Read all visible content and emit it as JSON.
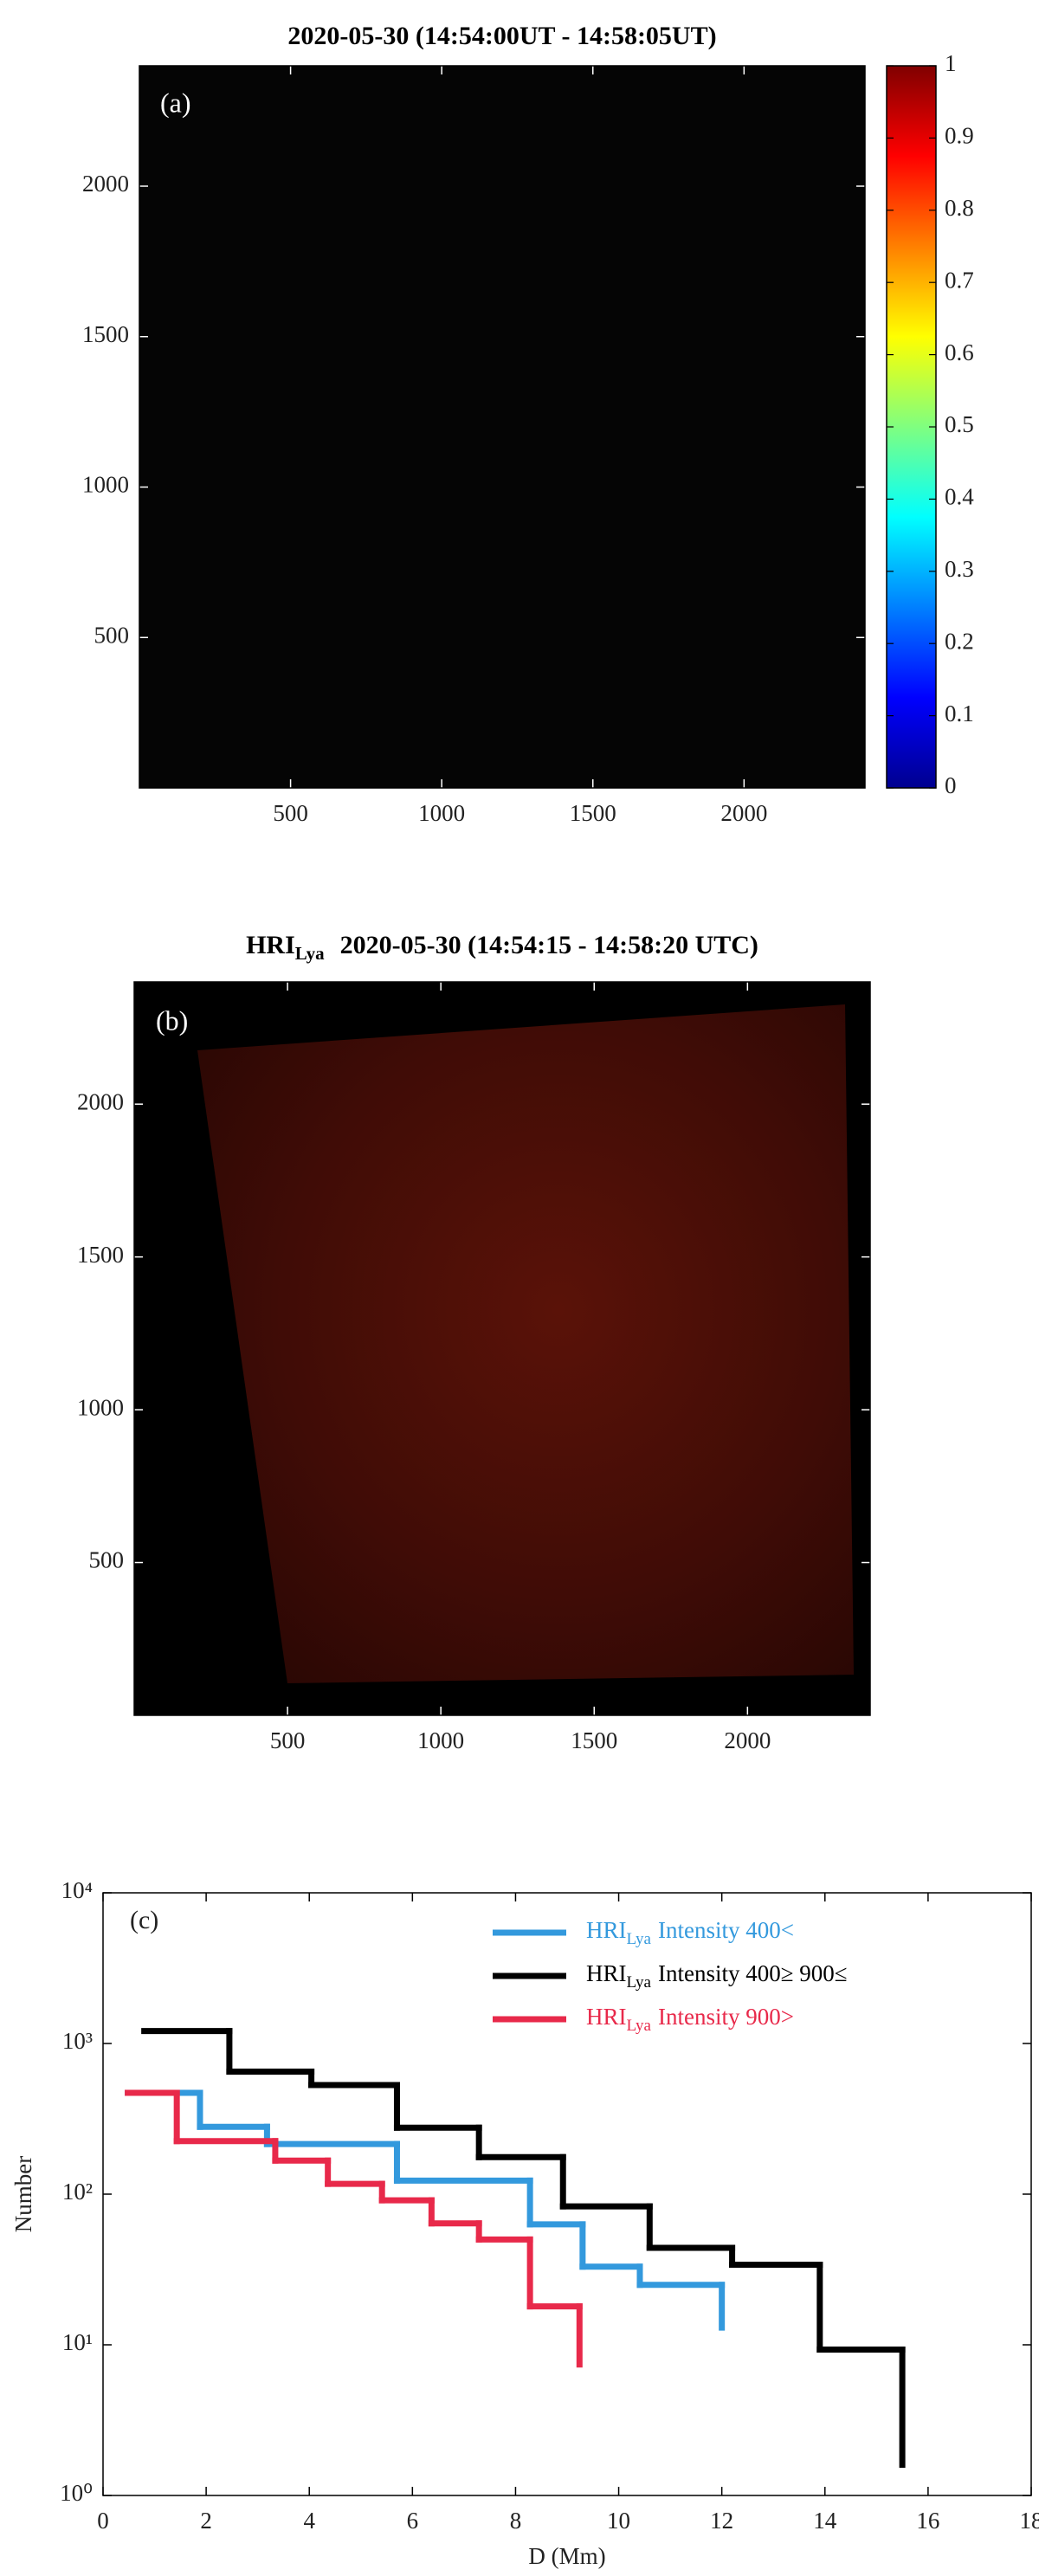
{
  "chart_data": [
    {
      "type": "image",
      "title": "2020-05-30  (14:54:00UT - 14:58:05UT)",
      "panel_label": "(a)",
      "xlim": [
        0,
        2400
      ],
      "ylim": [
        0,
        2400
      ],
      "xticks": [
        500,
        1000,
        1500,
        2000
      ],
      "yticks": [
        500,
        1000,
        1500,
        2000
      ],
      "colorbar": {
        "colormap": "jet",
        "clim": [
          0,
          1
        ],
        "ticks": [
          0,
          0.1,
          0.2,
          0.3,
          0.4,
          0.5,
          0.6,
          0.7,
          0.8,
          0.9,
          1
        ]
      }
    },
    {
      "type": "image",
      "title_prefix": "HRI",
      "title_subscript": "Lya",
      "title": "2020-05-30  (14:54:15 - 14:58:20 UTC)",
      "panel_label": "(b)",
      "xlim": [
        0,
        2400
      ],
      "ylim": [
        0,
        2400
      ],
      "xticks": [
        500,
        1000,
        1500,
        2000
      ],
      "yticks": [
        500,
        1000,
        1500,
        2000
      ]
    },
    {
      "type": "stairs",
      "panel_label": "(c)",
      "x_label": "D (Mm)",
      "y_label": "Number",
      "ylog": true,
      "xlim": [
        0,
        18
      ],
      "xticks": [
        0,
        2,
        4,
        6,
        8,
        10,
        12,
        14,
        16,
        18
      ],
      "ylim": [
        1,
        10000
      ],
      "yticks": [
        {
          "value": 1,
          "label": "10⁰"
        },
        {
          "value": 10,
          "label": "10¹"
        },
        {
          "value": 100,
          "label": "10²"
        },
        {
          "value": 1000,
          "label": "10³"
        },
        {
          "value": 10000,
          "label": "10⁴"
        }
      ],
      "series": [
        {
          "name": "HRI",
          "subscript": "Lya",
          "label": "Intensity 400<",
          "color": "#3399dd",
          "x": [
            0.48,
            1.88,
            3.18,
            5.7,
            8.28,
            9.3,
            10.41,
            12.0
          ],
          "values": [
            470,
            280,
            215,
            123,
            63,
            33,
            25,
            13
          ]
        },
        {
          "name": "HRI",
          "subscript": "Lya",
          "label": "Intensity 400≥ 900≤",
          "color": "#000000",
          "x": [
            0.8,
            2.45,
            4.04,
            5.7,
            7.29,
            8.92,
            10.6,
            12.2,
            13.9,
            15.5
          ],
          "values": [
            1210,
            650,
            530,
            276,
            176,
            83,
            44,
            34,
            9.3,
            1.6
          ]
        },
        {
          "name": "HRI",
          "subscript": "Lya",
          "label": "Intensity 900>",
          "color": "#e8294a",
          "x": [
            0.48,
            1.43,
            3.34,
            4.36,
            5.41,
            6.37,
            7.29,
            8.28,
            9.24
          ],
          "values": [
            470,
            225,
            167,
            117,
            91,
            64,
            50,
            18,
            7.4
          ]
        }
      ]
    }
  ]
}
